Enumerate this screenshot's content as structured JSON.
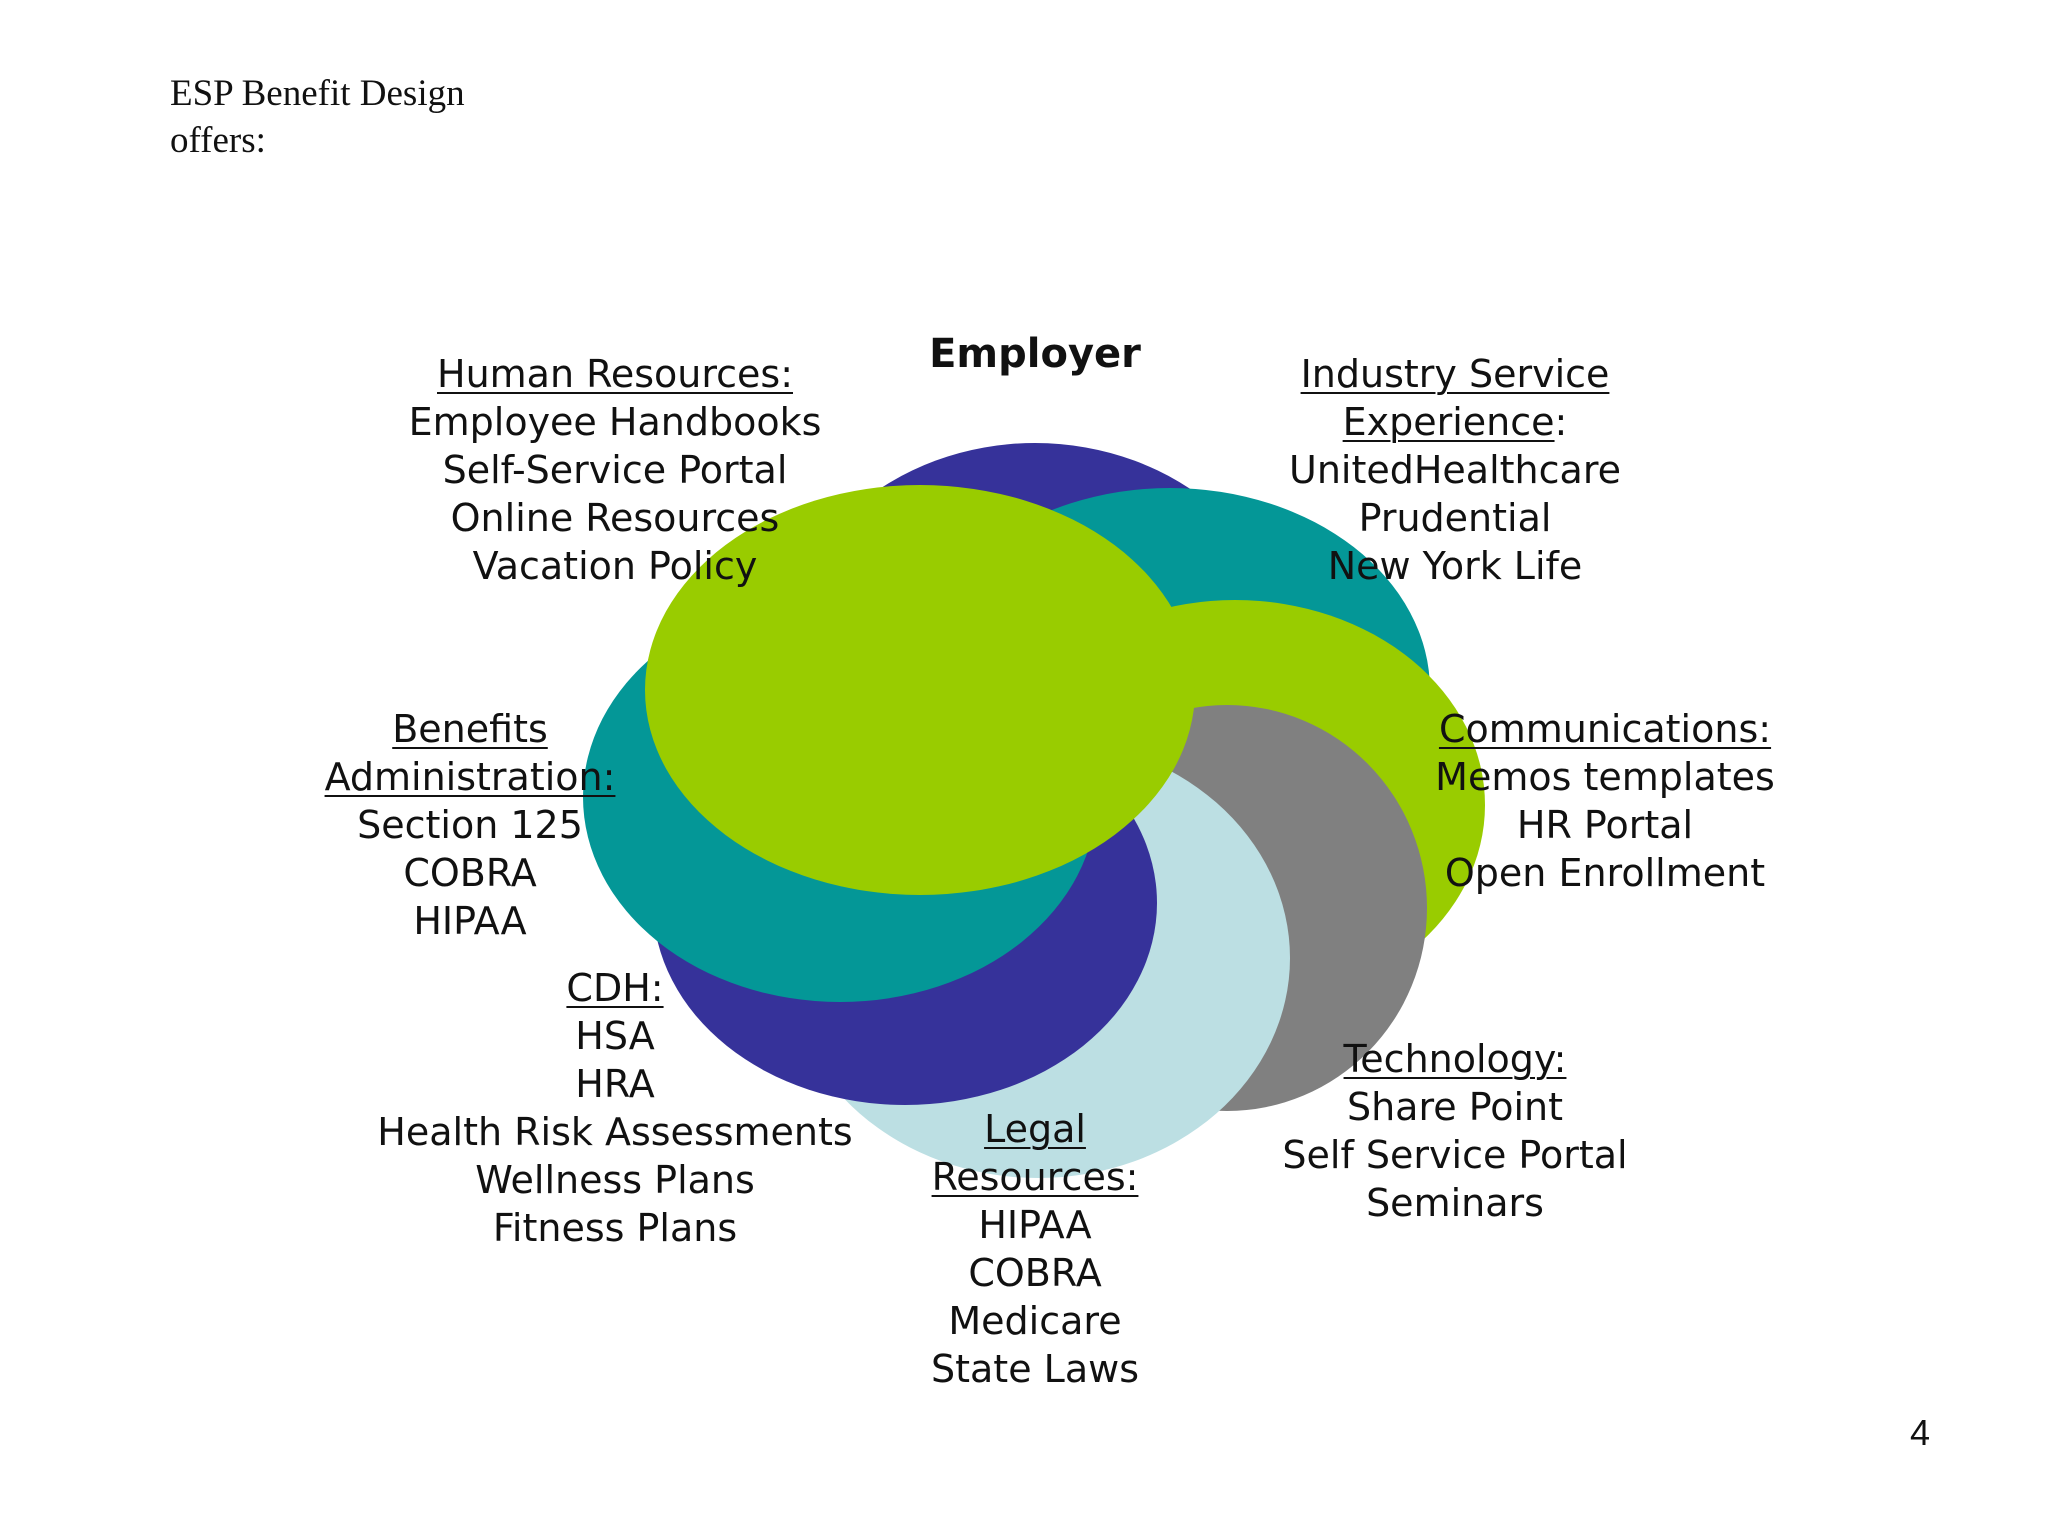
{
  "heading": {
    "line1": "ESP Benefit Design",
    "line2": "offers:"
  },
  "center": {
    "label": "Employer"
  },
  "colors": {
    "navy": "#36329A",
    "teal": "#049797",
    "lime": "#99CC00",
    "gray": "#808080",
    "light_blue": "#BCDFE3"
  },
  "categories": {
    "human_resources": {
      "title": "Human Resources:",
      "items": [
        "Employee Handbooks",
        "Self-Service Portal",
        "Online Resources",
        "Vacation Policy"
      ]
    },
    "industry_service": {
      "title_line1": "Industry Service",
      "title_line2": "Experience",
      "title_suffix": ":",
      "items": [
        "UnitedHealthcare",
        "Prudential",
        "New York Life"
      ]
    },
    "benefits_administration": {
      "title_line1": "Benefits",
      "title_line2": "Administration:",
      "items": [
        "Section 125",
        "COBRA",
        "HIPAA"
      ]
    },
    "communications": {
      "title": "Communications:",
      "items": [
        "Memos templates",
        "HR Portal",
        "Open Enrollment"
      ]
    },
    "cdh": {
      "title": "CDH:",
      "items": [
        "HSA",
        "HRA",
        "Health Risk Assessments",
        "Wellness Plans",
        "Fitness Plans"
      ]
    },
    "technology": {
      "title": "Technology:",
      "items": [
        "Share Point",
        "Self Service Portal",
        "Seminars"
      ]
    },
    "legal": {
      "title_line1": "Legal",
      "title_line2": "Resources:",
      "items": [
        "HIPAA",
        "COBRA",
        "Medicare",
        "State Laws"
      ]
    }
  },
  "page_number": "4"
}
